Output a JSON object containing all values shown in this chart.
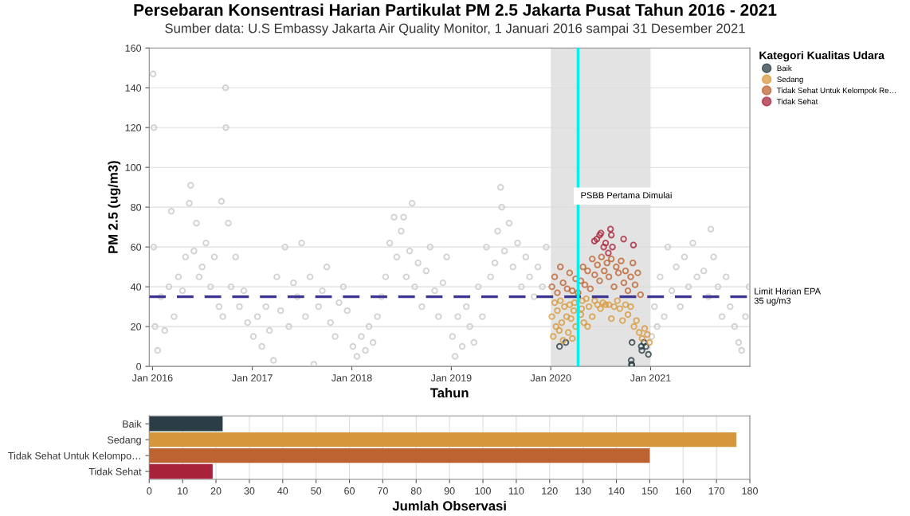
{
  "chart_data": [
    {
      "type": "scatter",
      "title": "Persebaran Konsentrasi Harian Partikulat PM 2.5 Jakarta Pusat Tahun 2016 - 2021",
      "subtitle": "Sumber data: U.S Embassy Jakarta Air Quality Monitor, 1 Januari 2016 sampai 31 Desember 2021",
      "xlabel": "Tahun",
      "ylabel": "PM 2.5 (ug/m3)",
      "legend_title": "Kategori Kualitas Udara",
      "legend": "right",
      "grid": "y",
      "marker": "circle",
      "xlim": [
        "2015-12-20",
        "2021-12-31"
      ],
      "xticks": [
        {
          "value": "2016-01-01",
          "label": "Jan 2016"
        },
        {
          "value": "2017-01-01",
          "label": "Jan 2017"
        },
        {
          "value": "2018-01-01",
          "label": "Jan 2018"
        },
        {
          "value": "2019-01-01",
          "label": "Jan 2019"
        },
        {
          "value": "2020-01-01",
          "label": "Jan 2020"
        },
        {
          "value": "2021-01-01",
          "label": "Jan 2021"
        }
      ],
      "ylim": [
        0,
        160
      ],
      "yticks": [
        0,
        20,
        40,
        60,
        80,
        100,
        120,
        140,
        160
      ],
      "series": [
        {
          "color": "#c8c8c8",
          "x": [
            "2016-01-03",
            "2016-01-06",
            "2016-01-05",
            "2016-01-10",
            "2016-01-20",
            "2016-02-01",
            "2016-02-15",
            "2016-03-01",
            "2016-03-10",
            "2016-03-20",
            "2016-04-05",
            "2016-04-20",
            "2016-05-01",
            "2016-05-15",
            "2016-05-20",
            "2016-06-01",
            "2016-06-10",
            "2016-06-20",
            "2016-07-01",
            "2016-07-15",
            "2016-08-01",
            "2016-08-15",
            "2016-09-01",
            "2016-09-10",
            "2016-09-15",
            "2016-09-25",
            "2016-09-26",
            "2016-10-05",
            "2016-10-15",
            "2016-11-01",
            "2016-11-15",
            "2016-12-01",
            "2016-12-15",
            "2017-01-05",
            "2017-01-20",
            "2017-02-05",
            "2017-02-20",
            "2017-03-05",
            "2017-03-20",
            "2017-04-01",
            "2017-04-15",
            "2017-05-01",
            "2017-05-15",
            "2017-06-01",
            "2017-06-15",
            "2017-07-01",
            "2017-07-15",
            "2017-08-01",
            "2017-08-15",
            "2017-09-01",
            "2017-09-15",
            "2017-10-01",
            "2017-10-15",
            "2017-11-01",
            "2017-11-15",
            "2017-12-01",
            "2017-12-15",
            "2018-01-05",
            "2018-01-20",
            "2018-02-05",
            "2018-02-20",
            "2018-03-05",
            "2018-03-20",
            "2018-04-05",
            "2018-04-20",
            "2018-05-05",
            "2018-05-20",
            "2018-06-05",
            "2018-06-15",
            "2018-07-01",
            "2018-07-10",
            "2018-07-20",
            "2018-08-01",
            "2018-08-10",
            "2018-08-20",
            "2018-09-01",
            "2018-09-15",
            "2018-10-01",
            "2018-10-15",
            "2018-11-01",
            "2018-11-15",
            "2018-12-01",
            "2018-12-15",
            "2019-01-05",
            "2019-01-15",
            "2019-01-25",
            "2019-02-10",
            "2019-02-25",
            "2019-03-10",
            "2019-03-25",
            "2019-04-10",
            "2019-04-25",
            "2019-05-10",
            "2019-05-25",
            "2019-06-10",
            "2019-06-20",
            "2019-07-01",
            "2019-07-05",
            "2019-07-15",
            "2019-08-01",
            "2019-08-15",
            "2019-09-01",
            "2019-09-15",
            "2019-10-01",
            "2019-10-15",
            "2019-11-01",
            "2019-11-15",
            "2019-12-01",
            "2019-12-15",
            "2021-01-05",
            "2021-01-15",
            "2021-01-25",
            "2021-02-05",
            "2021-02-20",
            "2021-03-05",
            "2021-03-20",
            "2021-04-05",
            "2021-04-20",
            "2021-05-05",
            "2021-05-20",
            "2021-06-05",
            "2021-06-20",
            "2021-07-15",
            "2021-08-01",
            "2021-08-10",
            "2021-08-20",
            "2021-09-05",
            "2021-09-20",
            "2021-10-05",
            "2021-10-20",
            "2021-11-05",
            "2021-11-20",
            "2021-12-01",
            "2021-12-15",
            "2021-12-28"
          ],
          "values": [
            147,
            120,
            60,
            20,
            8,
            35,
            18,
            40,
            78,
            25,
            45,
            38,
            55,
            82,
            91,
            58,
            72,
            45,
            50,
            62,
            40,
            55,
            30,
            83,
            25,
            140,
            120,
            72,
            40,
            55,
            30,
            38,
            22,
            15,
            25,
            10,
            30,
            18,
            3,
            45,
            28,
            60,
            20,
            42,
            35,
            62,
            25,
            45,
            1,
            30,
            38,
            50,
            22,
            15,
            32,
            40,
            28,
            10,
            5,
            15,
            8,
            20,
            12,
            25,
            35,
            45,
            62,
            75,
            55,
            68,
            75,
            45,
            58,
            82,
            40,
            52,
            30,
            48,
            60,
            38,
            25,
            42,
            55,
            15,
            5,
            25,
            10,
            30,
            20,
            12,
            40,
            25,
            60,
            45,
            52,
            68,
            90,
            80,
            58,
            72,
            50,
            62,
            40,
            55,
            45,
            35,
            50,
            40,
            60,
            15,
            30,
            20,
            45,
            25,
            60,
            38,
            50,
            30,
            55,
            40,
            62,
            45,
            48,
            35,
            69,
            55,
            40,
            25,
            45,
            30,
            20,
            12,
            8,
            25,
            40
          ]
        },
        {
          "name": "Baik",
          "color": "#2b3e45",
          "x": [
            "2020-02-02",
            "2020-02-25",
            "2020-10-25",
            "2020-10-22",
            "2020-10-23",
            "2020-10-24",
            "2020-11-28",
            "2020-11-30",
            "2020-12-08",
            "2020-12-15",
            "2020-12-24"
          ],
          "values": [
            10,
            12,
            12,
            3,
            1,
            0.5,
            10,
            8,
            12,
            10,
            6
          ]
        },
        {
          "name": "Sedang",
          "color": "#d89a3c",
          "x": [
            "2020-01-05",
            "2020-01-10",
            "2020-01-15",
            "2020-01-20",
            "2020-01-25",
            "2020-02-01",
            "2020-02-05",
            "2020-02-10",
            "2020-02-15",
            "2020-02-20",
            "2020-02-28",
            "2020-03-05",
            "2020-03-10",
            "2020-03-15",
            "2020-03-20",
            "2020-03-25",
            "2020-04-01",
            "2020-03-28",
            "2020-04-23",
            "2020-04-20",
            "2020-04-25",
            "2020-05-01",
            "2020-05-10",
            "2020-05-15",
            "2020-05-20",
            "2020-06-01",
            "2020-06-10",
            "2020-06-20",
            "2020-07-01",
            "2020-07-10",
            "2020-07-20",
            "2020-08-01",
            "2020-08-10",
            "2020-08-20",
            "2020-09-01",
            "2020-09-10",
            "2020-09-20",
            "2020-10-01",
            "2020-10-10",
            "2020-10-20",
            "2020-11-01",
            "2020-11-10",
            "2020-11-20",
            "2020-12-01",
            "2020-12-10",
            "2020-12-20",
            "2020-12-28"
          ],
          "values": [
            25,
            15,
            32,
            20,
            28,
            18,
            33,
            22,
            13,
            30,
            25,
            17,
            31,
            24,
            14,
            28,
            20,
            32,
            29,
            26,
            33,
            22,
            34,
            20,
            30,
            25,
            33,
            31,
            29,
            32,
            31,
            31,
            24,
            30,
            33,
            29,
            23,
            31,
            26,
            30,
            20,
            23,
            17,
            14,
            19,
            16,
            12
          ]
        },
        {
          "name": "Tidak Sehat Untuk Kelompok Re…",
          "color": "#be6330",
          "x": [
            "2020-01-05",
            "2020-01-15",
            "2020-01-25",
            "2020-02-05",
            "2020-02-15",
            "2020-03-01",
            "2020-03-10",
            "2020-03-20",
            "2020-04-01",
            "2020-04-10",
            "2020-04-20",
            "2020-04-28",
            "2020-05-05",
            "2020-05-15",
            "2020-05-25",
            "2020-06-01",
            "2020-06-10",
            "2020-06-20",
            "2020-06-28",
            "2020-07-05",
            "2020-07-15",
            "2020-07-25",
            "2020-08-01",
            "2020-08-10",
            "2020-08-20",
            "2020-08-28",
            "2020-09-05",
            "2020-09-15",
            "2020-09-25",
            "2020-10-01",
            "2020-10-10",
            "2020-10-20",
            "2020-10-28",
            "2020-11-05",
            "2020-11-15",
            "2020-11-25"
          ],
          "values": [
            40,
            45,
            37,
            50,
            42,
            39,
            47,
            38,
            44,
            37,
            43,
            50,
            41,
            48,
            39,
            54,
            46,
            51,
            43,
            55,
            48,
            52,
            45,
            54,
            40,
            50,
            47,
            53,
            42,
            48,
            38,
            45,
            52,
            41,
            47,
            36
          ]
        },
        {
          "name": "Tidak Sehat",
          "color": "#a82539",
          "x": [
            "2020-06-09",
            "2020-06-18",
            "2020-06-28",
            "2020-07-03",
            "2020-07-13",
            "2020-07-20",
            "2020-07-30",
            "2020-08-07",
            "2020-08-10",
            "2020-08-14",
            "2020-09-24",
            "2020-10-30"
          ],
          "values": [
            63,
            64,
            66,
            67,
            60,
            62,
            57,
            69,
            66,
            60,
            64,
            61
          ]
        }
      ],
      "ref_lines": [
        {
          "axis": "y",
          "value": 35,
          "label": "Limit Harian EPA\n35 ug/m3",
          "color": "#3b3491",
          "line_style": "dashed"
        },
        {
          "axis": "x",
          "value": "2020-04-10",
          "label": "PSBB Pertama Dimulai",
          "color": "#00f0f0",
          "line_style": "solid"
        }
      ],
      "bands": [
        {
          "axis": "x",
          "from": "2020-01-01",
          "to": "2021-01-01",
          "color": "#e3e3e3"
        }
      ]
    },
    {
      "type": "bar",
      "orientation": "horizontal",
      "xlabel": "Jumlah Observasi",
      "grid": "x",
      "categories": [
        "Baik",
        "Sedang",
        "Tidak Sehat Untuk Kelompo…",
        "Tidak Sehat"
      ],
      "values": [
        22,
        176,
        150,
        19
      ],
      "colors": [
        "#2b3e45",
        "#d6963b",
        "#bd6331",
        "#a82339"
      ],
      "xlim": [
        0,
        180
      ],
      "xticks": [
        0,
        10,
        20,
        30,
        40,
        50,
        60,
        70,
        80,
        90,
        100,
        110,
        120,
        130,
        140,
        150,
        160,
        170,
        180
      ]
    }
  ]
}
